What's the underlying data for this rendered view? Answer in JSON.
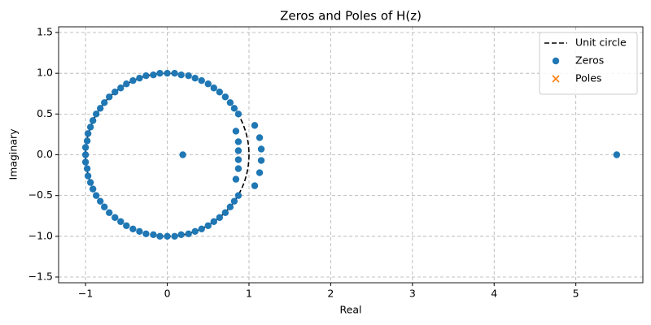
{
  "chart_data": {
    "type": "scatter",
    "title": "Zeros and Poles of H(z)",
    "xlabel": "Real",
    "ylabel": "Imaginary",
    "xlim": [
      -1.33,
      5.82
    ],
    "ylim": [
      -1.57,
      1.57
    ],
    "xticks": [
      {
        "value": -1,
        "label": "−1"
      },
      0,
      1,
      2,
      3,
      4,
      5
    ],
    "yticks": [
      {
        "value": -1.5,
        "label": "−1.5"
      },
      {
        "value": -1,
        "label": "−1.0"
      },
      {
        "value": -0.5,
        "label": "−0.5"
      },
      {
        "value": 0,
        "label": "0.0"
      },
      0.5,
      {
        "value": 1,
        "label": "1.0"
      },
      1.5
    ],
    "grid": true,
    "legend": "upper right",
    "unit_circle": {
      "name": "Unit circle",
      "color": "#000000",
      "center": [
        0,
        0
      ],
      "radius": 1
    },
    "series": [
      {
        "name": "Zeros",
        "color": "#1f77b4",
        "marker": "o",
        "x": [
          0.87,
          0.82,
          0.77,
          0.71,
          0.64,
          0.57,
          0.5,
          0.42,
          0.34,
          0.26,
          0.17,
          0.09,
          0,
          -0.09,
          -0.17,
          -0.26,
          -0.34,
          -0.42,
          -0.5,
          -0.57,
          -0.64,
          -0.71,
          -0.77,
          -0.82,
          -0.87,
          -0.91,
          -0.94,
          -0.97,
          -0.98,
          -1.0,
          -1,
          -1.0,
          -0.98,
          -0.97,
          -0.94,
          -0.91,
          -0.87,
          -0.82,
          -0.77,
          -0.71,
          -0.64,
          -0.57,
          -0.5,
          -0.42,
          -0.34,
          -0.26,
          -0.17,
          -0.09,
          0,
          0.09,
          0.17,
          0.26,
          0.34,
          0.42,
          0.5,
          0.57,
          0.64,
          0.71,
          0.77,
          0.82,
          0.87,
          0.84,
          0.87,
          0.87,
          0.87,
          0.87,
          0.84,
          1.07,
          1.13,
          1.15,
          1.15,
          1.13,
          1.07,
          0.19,
          5.5
        ],
        "y": [
          0.5,
          0.57,
          0.64,
          0.71,
          0.77,
          0.82,
          0.87,
          0.91,
          0.94,
          0.97,
          0.98,
          1.0,
          1,
          1.0,
          0.98,
          0.97,
          0.94,
          0.91,
          0.87,
          0.82,
          0.77,
          0.71,
          0.64,
          0.57,
          0.5,
          0.42,
          0.34,
          0.26,
          0.17,
          0.09,
          0,
          -0.09,
          -0.17,
          -0.26,
          -0.34,
          -0.42,
          -0.5,
          -0.57,
          -0.64,
          -0.71,
          -0.77,
          -0.82,
          -0.87,
          -0.91,
          -0.94,
          -0.97,
          -0.98,
          -1.0,
          -1,
          -1.0,
          -0.98,
          -0.97,
          -0.94,
          -0.91,
          -0.87,
          -0.82,
          -0.77,
          -0.71,
          -0.64,
          -0.57,
          -0.5,
          0.29,
          0.16,
          0.05,
          -0.06,
          -0.17,
          -0.3,
          0.36,
          0.21,
          0.07,
          -0.07,
          -0.22,
          -0.38,
          0,
          0
        ]
      },
      {
        "name": "Poles",
        "color": "#ff7f0e",
        "marker": "x",
        "x": [],
        "y": []
      }
    ]
  }
}
